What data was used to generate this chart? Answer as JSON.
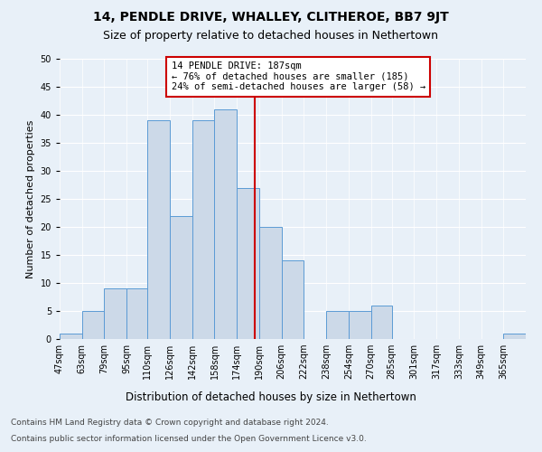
{
  "title": "14, PENDLE DRIVE, WHALLEY, CLITHEROE, BB7 9JT",
  "subtitle": "Size of property relative to detached houses in Nethertown",
  "xlabel": "Distribution of detached houses by size in Nethertown",
  "ylabel": "Number of detached properties",
  "bin_edges": [
    47,
    63,
    79,
    95,
    110,
    126,
    142,
    158,
    174,
    190,
    206,
    222,
    238,
    254,
    270,
    285,
    301,
    317,
    333,
    349,
    365,
    381
  ],
  "bin_labels": [
    "47sqm",
    "63sqm",
    "79sqm",
    "95sqm",
    "110sqm",
    "126sqm",
    "142sqm",
    "158sqm",
    "174sqm",
    "190sqm",
    "206sqm",
    "222sqm",
    "238sqm",
    "254sqm",
    "270sqm",
    "285sqm",
    "301sqm",
    "317sqm",
    "333sqm",
    "349sqm",
    "365sqm"
  ],
  "bar_heights": [
    1,
    5,
    9,
    9,
    39,
    22,
    39,
    41,
    27,
    20,
    14,
    0,
    5,
    5,
    6,
    0,
    0,
    0,
    0,
    0,
    1
  ],
  "bar_color": "#ccd9e8",
  "bar_edge_color": "#5b9bd5",
  "vline_x": 187,
  "vline_color": "#cc0000",
  "annotation_text": "14 PENDLE DRIVE: 187sqm\n← 76% of detached houses are smaller (185)\n24% of semi-detached houses are larger (58) →",
  "annotation_box_color": "#cc0000",
  "ylim": [
    0,
    50
  ],
  "yticks": [
    0,
    5,
    10,
    15,
    20,
    25,
    30,
    35,
    40,
    45,
    50
  ],
  "background_color": "#e8f0f8",
  "plot_bg_color": "#e8f0f8",
  "footer_line1": "Contains HM Land Registry data © Crown copyright and database right 2024.",
  "footer_line2": "Contains public sector information licensed under the Open Government Licence v3.0.",
  "title_fontsize": 10,
  "subtitle_fontsize": 9,
  "xlabel_fontsize": 8.5,
  "ylabel_fontsize": 8,
  "tick_fontsize": 7,
  "annotation_fontsize": 7.5,
  "footer_fontsize": 6.5
}
